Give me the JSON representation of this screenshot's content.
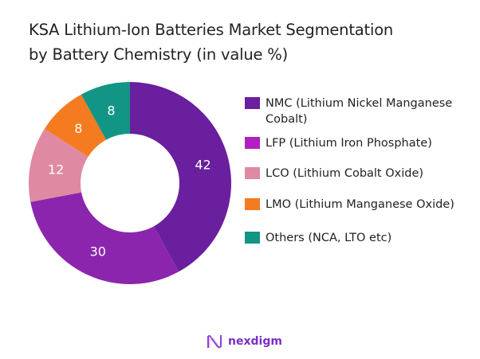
{
  "chart_data": {
    "type": "pie",
    "title": "KSA Lithium-Ion Batteries Market Segmentation by Battery Chemistry (in value %)",
    "title_lines": [
      "KSA Lithium-Ion Batteries Market Segmentation",
      "by Battery Chemistry (in value %)"
    ],
    "donut": true,
    "legend_position": "right",
    "categories": [
      "NMC (Lithium Nickel Manganese Cobalt)",
      "LFP (Lithium Iron Phosphate)",
      "LCO (Lithium Cobalt Oxide)",
      "LMO (Lithium Manganese Oxide)",
      "Others (NCA, LTO etc)"
    ],
    "values": [
      42,
      30,
      12,
      8,
      8
    ],
    "colors": [
      "#6a1f9e",
      "#8c25ae",
      "#df8aa2",
      "#f47b20",
      "#139586"
    ],
    "legend_colors": [
      "#6a1f9e",
      "#b21fc0",
      "#df8aa2",
      "#f47b20",
      "#139586"
    ]
  },
  "logo": {
    "text": "nexdigm"
  }
}
